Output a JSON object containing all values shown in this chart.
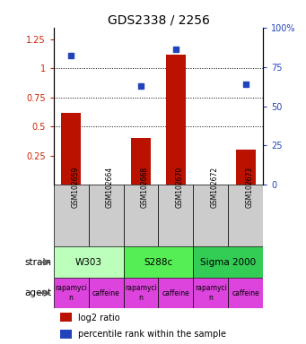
{
  "title": "GDS2338 / 2256",
  "samples": [
    "GSM102659",
    "GSM102664",
    "GSM102668",
    "GSM102670",
    "GSM102672",
    "GSM102673"
  ],
  "log2_ratio": [
    0.62,
    0.0,
    0.4,
    1.12,
    0.0,
    0.3
  ],
  "percentile_pct": [
    82,
    0,
    63,
    86,
    0,
    64
  ],
  "bar_color": "#bb1100",
  "dot_color": "#2244bb",
  "ylim_left": [
    0.0,
    1.35
  ],
  "ylim_right": [
    0.0,
    100
  ],
  "yticks_left": [
    0.25,
    0.5,
    0.75,
    1.0,
    1.25
  ],
  "ytick_labels_left": [
    "0.25",
    "0.5",
    "0.75",
    "1",
    "1.25"
  ],
  "yticks_right": [
    0,
    25,
    50,
    75,
    100
  ],
  "ytick_labels_right": [
    "0",
    "25",
    "50",
    "75",
    "100%"
  ],
  "hlines": [
    0.5,
    0.75,
    1.0
  ],
  "strains": [
    {
      "label": "W303",
      "cols": [
        0,
        1
      ],
      "color": "#bbffbb"
    },
    {
      "label": "S288c",
      "cols": [
        2,
        3
      ],
      "color": "#55ee55"
    },
    {
      "label": "Sigma 2000",
      "cols": [
        4,
        5
      ],
      "color": "#33cc55"
    }
  ],
  "agent_labels": [
    "rapamycin",
    "caffeine",
    "rapamycin",
    "caffeine",
    "rapamycin",
    "caffeine"
  ],
  "agent_color": "#dd44dd",
  "strain_label": "strain",
  "agent_label": "agent",
  "legend_bar": "log2 ratio",
  "legend_dot": "percentile rank within the sample",
  "left_axis_color": "#cc2200",
  "right_axis_color": "#2244bb",
  "sample_box_color": "#cccccc"
}
